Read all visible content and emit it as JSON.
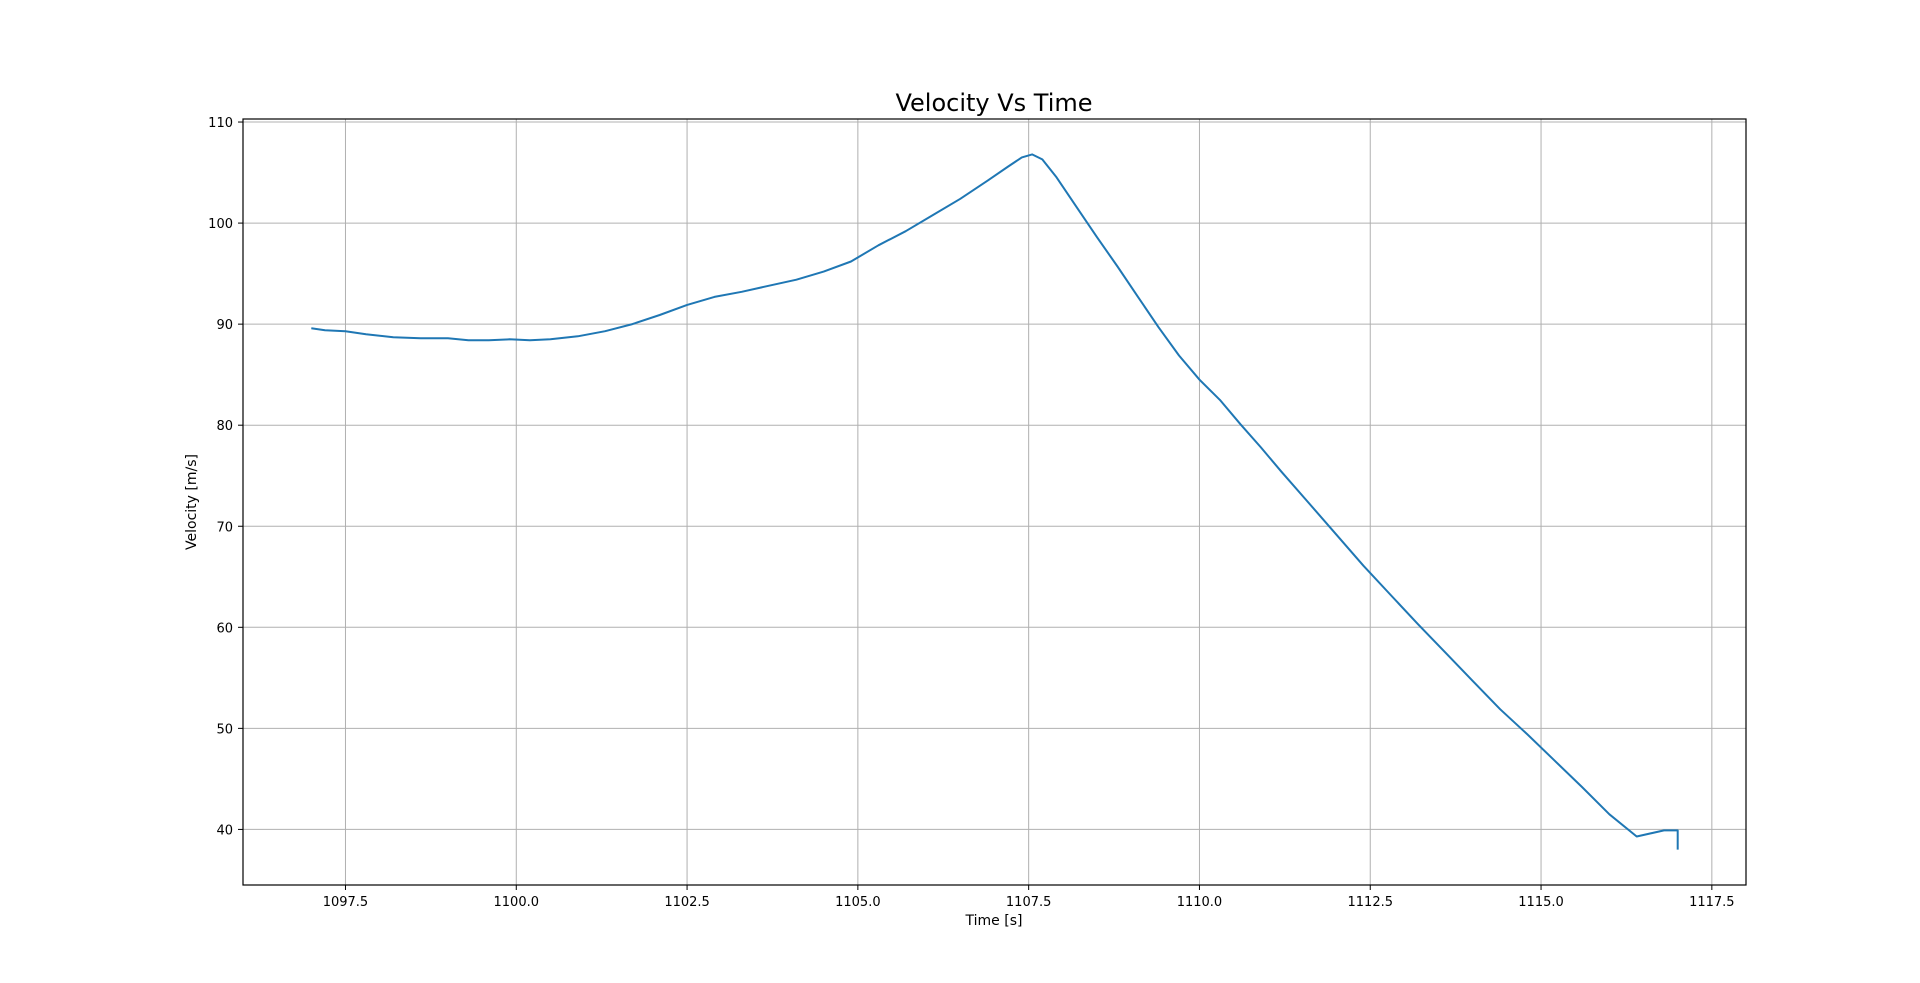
{
  "chart_data": {
    "type": "line",
    "title": "Velocity Vs Time",
    "xlabel": "Time [s]",
    "ylabel": "Velocity [m/s]",
    "xlim": [
      1096.0,
      1118.0
    ],
    "ylim": [
      34.5,
      110.3
    ],
    "grid": true,
    "line_color": "#1f77b4",
    "x_ticks": [
      1097.5,
      1100.0,
      1102.5,
      1105.0,
      1107.5,
      1110.0,
      1112.5,
      1115.0,
      1117.5
    ],
    "x_tick_labels": [
      "1097.5",
      "1100.0",
      "1102.5",
      "1105.0",
      "1107.5",
      "1110.0",
      "1112.5",
      "1115.0",
      "1117.5"
    ],
    "y_ticks": [
      40,
      50,
      60,
      70,
      80,
      90,
      100,
      110
    ],
    "y_tick_labels": [
      "40",
      "50",
      "60",
      "70",
      "80",
      "90",
      "100",
      "110"
    ],
    "series": [
      {
        "x": [
          1097.0,
          1097.2,
          1097.5,
          1097.8,
          1098.2,
          1098.6,
          1099.0,
          1099.3,
          1099.6,
          1099.9,
          1100.2,
          1100.5,
          1100.9,
          1101.3,
          1101.7,
          1102.1,
          1102.5,
          1102.9,
          1103.3,
          1103.7,
          1104.1,
          1104.5,
          1104.9,
          1105.3,
          1105.7,
          1106.1,
          1106.5,
          1106.9,
          1107.2,
          1107.4,
          1107.55,
          1107.7,
          1107.9,
          1108.2,
          1108.5,
          1108.8,
          1109.1,
          1109.4,
          1109.7,
          1110.0,
          1110.3,
          1110.6,
          1110.9,
          1111.2,
          1111.6,
          1112.0,
          1112.4,
          1112.8,
          1113.2,
          1113.6,
          1114.0,
          1114.4,
          1114.8,
          1115.2,
          1115.6,
          1116.0,
          1116.4,
          1116.8,
          1117.0,
          1117.0
        ],
        "y": [
          89.6,
          89.4,
          89.3,
          89.0,
          88.7,
          88.6,
          88.6,
          88.4,
          88.4,
          88.5,
          88.4,
          88.5,
          88.8,
          89.3,
          90.0,
          90.9,
          91.9,
          92.7,
          93.2,
          93.8,
          94.4,
          95.2,
          96.2,
          97.8,
          99.2,
          100.8,
          102.4,
          104.2,
          105.6,
          106.5,
          106.8,
          106.3,
          104.6,
          101.6,
          98.6,
          95.7,
          92.7,
          89.7,
          86.9,
          84.5,
          82.5,
          80.1,
          77.8,
          75.4,
          72.3,
          69.2,
          66.1,
          63.2,
          60.3,
          57.5,
          54.7,
          51.9,
          49.4,
          46.8,
          44.2,
          41.5,
          39.3,
          39.9,
          39.9,
          38.0
        ]
      }
    ]
  }
}
